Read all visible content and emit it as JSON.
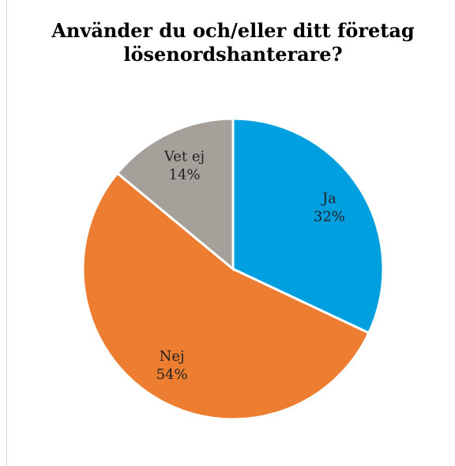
{
  "chart_data": {
    "type": "pie",
    "title": "Använder du och/eller ditt företag lösenordshanterare?",
    "categories": [
      "Ja",
      "Nej",
      "Vet ej"
    ],
    "values": [
      32,
      54,
      14
    ],
    "value_labels": [
      "32%",
      "54%",
      "14%"
    ],
    "colors": [
      "#009fe0",
      "#ed7d31",
      "#a6a09b"
    ]
  }
}
